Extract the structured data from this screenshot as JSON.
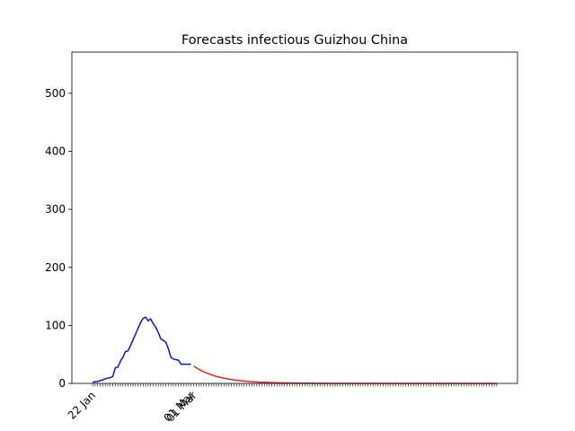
{
  "chart_data": {
    "type": "line",
    "title": "Forecasts infectious Guizhou China",
    "categories": [
      "22 Jan",
      null,
      null,
      null,
      null,
      null,
      null,
      null,
      null,
      null,
      null,
      null,
      null,
      null,
      null,
      null,
      null,
      null,
      null,
      null,
      null,
      null,
      null,
      null,
      null,
      null,
      null,
      null,
      null,
      null,
      null,
      null,
      null,
      null,
      null,
      null,
      null,
      null,
      null,
      "01 Mar",
      "01 Mar",
      null,
      null,
      null,
      null,
      null,
      null,
      null,
      null,
      null,
      null,
      null,
      null,
      null,
      null,
      null,
      null,
      null,
      null,
      null,
      null,
      null,
      null,
      null,
      null,
      null,
      null,
      null,
      null,
      null,
      null,
      null,
      null,
      null,
      null,
      null,
      null,
      null,
      null,
      null,
      null,
      null,
      null,
      null,
      null,
      null,
      null,
      null,
      null,
      null,
      null,
      null,
      null,
      null,
      null,
      null,
      null,
      null,
      null,
      null,
      null,
      null,
      null,
      null,
      null,
      null,
      null,
      null,
      null,
      null,
      null,
      null,
      null,
      null,
      null,
      null,
      null,
      null,
      null,
      null,
      null,
      null,
      null,
      null,
      null,
      null,
      null,
      null,
      null,
      null,
      null,
      null,
      null,
      null,
      null,
      null,
      null,
      null,
      null,
      null,
      null,
      null,
      null,
      null,
      null,
      null,
      null,
      null,
      null,
      null,
      null,
      null,
      null,
      null,
      null,
      null,
      null,
      null,
      null,
      null,
      null
    ],
    "series": [
      {
        "color": "#1010d0",
        "values": [
          2,
          3,
          3,
          5,
          6,
          8,
          9,
          10,
          12,
          27,
          28,
          38,
          45,
          55,
          56,
          65,
          75,
          85,
          95,
          105,
          112,
          114,
          108,
          111,
          103,
          97,
          88,
          77,
          74,
          71,
          60,
          45,
          42,
          41,
          40,
          33,
          33,
          33,
          33,
          33,
          null,
          null,
          null,
          null,
          null,
          null,
          null,
          null,
          null,
          null,
          null,
          null,
          null,
          null,
          null,
          null,
          null,
          null,
          null,
          null,
          null,
          null,
          null,
          null,
          null,
          null,
          null,
          null,
          null,
          null,
          null,
          null,
          null,
          null,
          null,
          null,
          null,
          null,
          null,
          null,
          null,
          null,
          null,
          null,
          null,
          null,
          null,
          null,
          null,
          null,
          null,
          null,
          null,
          null,
          null,
          null,
          null,
          null,
          null,
          null,
          null,
          null,
          null,
          null,
          null,
          null,
          null,
          null,
          null,
          null,
          null,
          null,
          null,
          null,
          null,
          null,
          null,
          null,
          null,
          null,
          null,
          null,
          null,
          null,
          null,
          null,
          null,
          null,
          null,
          null,
          null,
          null,
          null,
          null,
          null,
          null,
          null,
          null,
          null,
          null,
          null,
          null,
          null,
          null,
          null,
          null,
          null,
          null,
          null,
          null,
          null,
          null,
          null,
          null,
          null,
          null,
          null,
          null,
          null,
          null,
          null
        ]
      },
      {
        "color": "#e8231f",
        "values": [
          null,
          null,
          null,
          null,
          null,
          null,
          null,
          null,
          null,
          null,
          null,
          null,
          null,
          null,
          null,
          null,
          null,
          null,
          null,
          null,
          null,
          null,
          null,
          null,
          null,
          null,
          null,
          null,
          null,
          null,
          null,
          null,
          null,
          null,
          null,
          null,
          null,
          null,
          null,
          null,
          30,
          27.1,
          24.6,
          22.2,
          20.1,
          18.2,
          16.5,
          14.9,
          13.5,
          12.2,
          11.0,
          10.0,
          9.0,
          8.2,
          7.4,
          6.7,
          6.1,
          5.5,
          5.0,
          4.5,
          4.1,
          3.7,
          3.3,
          3.0,
          2.7,
          2.5,
          2.2,
          2.0,
          1.8,
          1.7,
          1.5,
          1.4,
          1.2,
          1.1,
          1.0,
          0.9,
          0.8,
          0.7,
          0.7,
          0.6,
          0.5,
          0.5,
          0.4,
          0.4,
          0.4,
          0.3,
          0.3,
          0.3,
          0.2,
          0.2,
          0.2,
          0.2,
          0.2,
          0.1,
          0.1,
          0.1,
          0.1,
          0.1,
          0.1,
          0.1,
          0,
          0,
          0,
          0,
          0,
          0,
          0,
          0,
          0,
          0,
          0,
          0,
          0,
          0,
          0,
          0,
          0,
          0,
          0,
          0,
          0,
          0,
          0,
          0,
          0,
          0,
          0,
          0,
          0,
          0,
          0,
          0,
          0,
          0,
          0,
          0,
          0,
          0,
          0,
          0,
          0,
          0,
          0,
          0,
          0,
          0,
          0,
          0,
          0,
          0,
          0,
          0,
          0,
          0,
          0,
          0,
          0,
          0,
          0,
          0,
          0
        ]
      }
    ],
    "ylim": [
      0,
      571
    ],
    "yticks": [
      0,
      100,
      200,
      300,
      400,
      500
    ]
  }
}
